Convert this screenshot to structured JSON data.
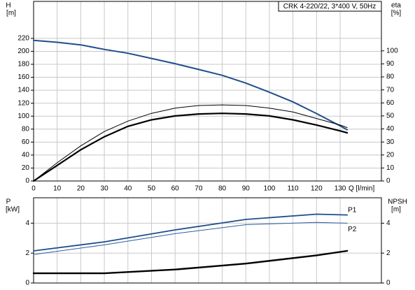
{
  "chart_data": [
    {
      "type": "line",
      "annotation": "CRK 4-220/22, 3*400 V, 50Hz",
      "ylabel": "H",
      "ylabel_unit": "[m]",
      "y2label": "eta",
      "y2label_unit": "[%]",
      "xlabel": "Q [l/min]",
      "x": [
        0,
        10,
        20,
        30,
        40,
        50,
        60,
        70,
        80,
        90,
        100,
        110,
        120,
        130,
        133
      ],
      "series": [
        {
          "color": "#1f4e8c",
          "values": [
            217,
            214,
            210,
            203,
            197,
            189,
            181,
            172,
            163,
            151,
            137,
            122,
            104,
            85,
            79
          ]
        },
        {
          "color": "#000000",
          "axis": "y2",
          "values": [
            0,
            14,
            27,
            38,
            46,
            52,
            56,
            58,
            58.5,
            58,
            56,
            53,
            48,
            43,
            41
          ]
        },
        {
          "color": "#000000",
          "axis": "y2",
          "values": [
            0,
            12,
            24,
            34,
            42,
            47,
            50,
            51.5,
            52,
            51.5,
            50,
            47,
            43,
            38.5,
            37
          ]
        }
      ],
      "xlim": [
        0,
        147.5
      ],
      "xticks": [
        0,
        10,
        20,
        30,
        40,
        50,
        60,
        70,
        80,
        90,
        100,
        110,
        120,
        130
      ],
      "ylim": [
        0,
        277
      ],
      "yticks": [
        0,
        20,
        40,
        60,
        80,
        100,
        120,
        140,
        160,
        180,
        200,
        220
      ],
      "y2lim": [
        0,
        138
      ],
      "y2ticks": [
        0,
        10,
        20,
        30,
        40,
        50,
        60,
        70,
        80,
        90,
        100
      ],
      "grid": true
    },
    {
      "type": "line",
      "ylabel": "P",
      "ylabel_unit": "[kW]",
      "y2label": "NPSH",
      "y2label_unit": "[m]",
      "x": [
        0,
        30,
        60,
        90,
        120,
        133
      ],
      "series": [
        {
          "name": "P1",
          "color": "#1f4e8c",
          "values": [
            2.15,
            2.75,
            3.55,
            4.25,
            4.6,
            4.55
          ]
        },
        {
          "name": "P2",
          "color": "#2c5f9e",
          "values": [
            1.9,
            2.55,
            3.3,
            3.9,
            4.05,
            4.0
          ]
        },
        {
          "color": "#000000",
          "axis": "y2",
          "values": [
            0.65,
            0.65,
            0.9,
            1.3,
            1.85,
            2.15
          ]
        }
      ],
      "xlim": [
        0,
        147.5
      ],
      "ylim": [
        0,
        5.7
      ],
      "yticks": [
        0,
        2,
        4
      ],
      "y2lim": [
        0,
        5.7
      ],
      "y2ticks": [
        0,
        2,
        4
      ],
      "grid": true
    }
  ]
}
